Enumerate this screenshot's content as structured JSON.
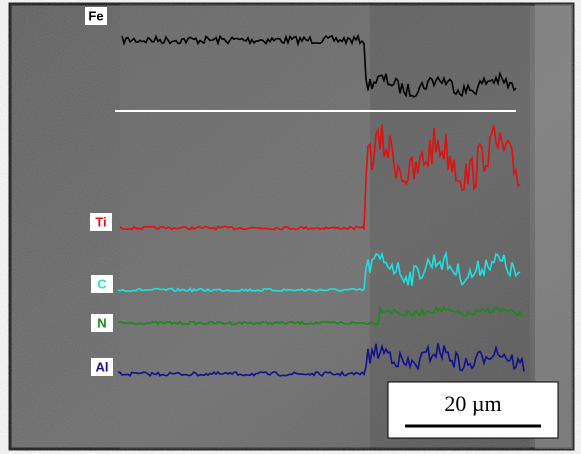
{
  "traces": [
    {
      "label": "Fe"
    },
    {
      "label": "Ti"
    },
    {
      "label": "C"
    },
    {
      "label": "N"
    },
    {
      "label": "Al"
    }
  ],
  "scale_bar": {
    "label": "20 µm"
  }
}
